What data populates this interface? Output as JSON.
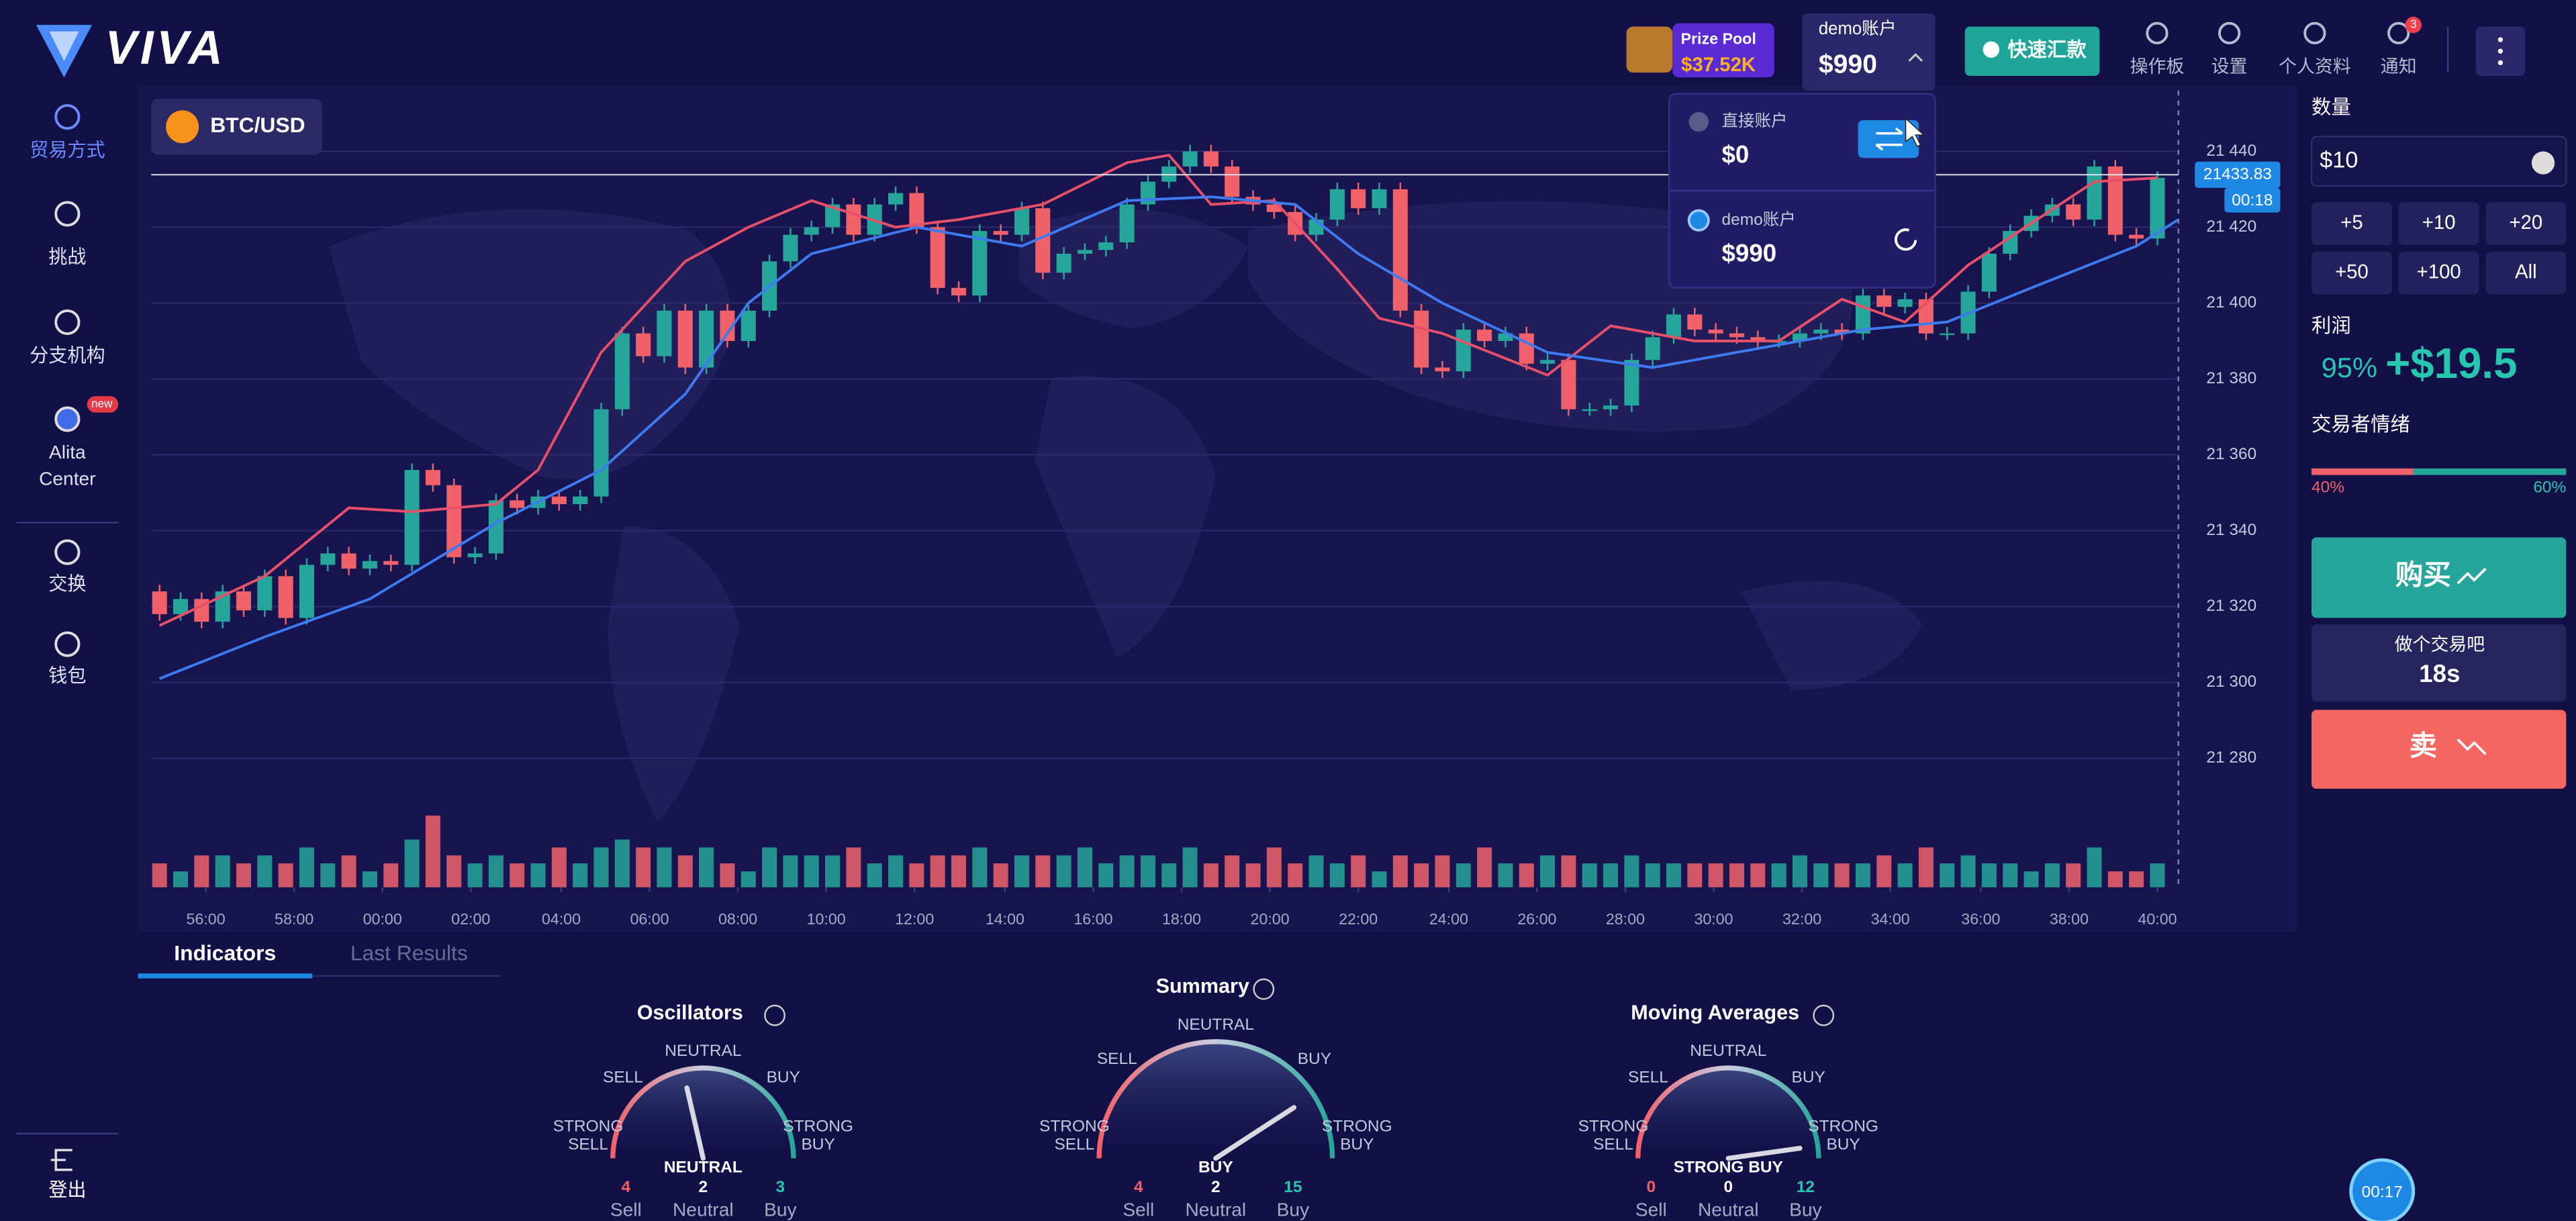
{
  "header": {
    "logo": "VIVA",
    "prize_pool_label": "Prize Pool",
    "prize_pool_value": "$37.52K",
    "account_label": "demo账户",
    "account_balance": "$990",
    "deposit_button": "快速汇款",
    "nav": [
      "操作板",
      "设置",
      "个人资料",
      "通知"
    ],
    "notification_count": "3"
  },
  "account_dropdown": {
    "accounts": [
      {
        "label": "直接账户",
        "balance": "$0"
      },
      {
        "label": "demo账户",
        "balance": "$990"
      }
    ]
  },
  "sidebar": {
    "items": [
      [
        "贸易方式"
      ],
      [
        "挑战"
      ],
      [
        "分支机构"
      ],
      [
        "Alita",
        "Center"
      ],
      [
        "交换"
      ],
      [
        "钱包"
      ]
    ],
    "badge": "new",
    "logout": "登出"
  },
  "asset": "BTC/USD",
  "chart_data": {
    "type": "candlestick",
    "up_color": "#26a69a",
    "down_color": "#f0616a",
    "grid": true,
    "xlim": [
      -0.4,
      96
    ],
    "ylim": [
      21246,
      21456
    ],
    "y2lim": [
      0,
      100
    ],
    "xticks": [
      {
        "value": 2.2,
        "label": "56:00"
      },
      {
        "value": 6.4,
        "label": "58:00"
      },
      {
        "value": 10.6,
        "label": "00:00"
      },
      {
        "value": 14.8,
        "label": "02:00"
      },
      {
        "value": 19.1,
        "label": "04:00"
      },
      {
        "value": 23.3,
        "label": "06:00"
      },
      {
        "value": 27.5,
        "label": "08:00"
      },
      {
        "value": 31.7,
        "label": "10:00"
      },
      {
        "value": 35.9,
        "label": "12:00"
      },
      {
        "value": 40.2,
        "label": "14:00"
      },
      {
        "value": 44.4,
        "label": "16:00"
      },
      {
        "value": 48.6,
        "label": "18:00"
      },
      {
        "value": 52.8,
        "label": "20:00"
      },
      {
        "value": 57,
        "label": "22:00"
      },
      {
        "value": 61.3,
        "label": "24:00"
      },
      {
        "value": 65.5,
        "label": "26:00"
      },
      {
        "value": 69.7,
        "label": "28:00"
      },
      {
        "value": 73.9,
        "label": "30:00"
      },
      {
        "value": 78.1,
        "label": "32:00"
      },
      {
        "value": 82.3,
        "label": "34:00"
      },
      {
        "value": 86.6,
        "label": "36:00"
      },
      {
        "value": 90.8,
        "label": "38:00"
      },
      {
        "value": 95,
        "label": "40:00"
      }
    ],
    "yticks": [
      {
        "value": 21280,
        "label": "21 280"
      },
      {
        "value": 21300,
        "label": "21 300"
      },
      {
        "value": 21320,
        "label": "21 320"
      },
      {
        "value": 21340,
        "label": "21 340"
      },
      {
        "value": 21360,
        "label": "21 360"
      },
      {
        "value": 21380,
        "label": "21 380"
      },
      {
        "value": 21400,
        "label": "21 400"
      },
      {
        "value": 21420,
        "label": "21 420"
      },
      {
        "value": 21440,
        "label": "21 440"
      }
    ],
    "current_price": 21433.83,
    "countdown": "00:18",
    "open": [
      21324,
      21318,
      21322,
      21316,
      21324,
      21319,
      21328,
      21317,
      21331,
      21334,
      21330,
      21332,
      21331,
      21356,
      21352,
      21333,
      21334,
      21348,
      21346,
      21349,
      21347,
      21349,
      21372,
      21392,
      21386,
      21398,
      21383,
      21398,
      21390,
      21398,
      21411,
      21418,
      21420,
      21426,
      21418,
      21426,
      21429,
      21420,
      21404,
      21402,
      21419,
      21418,
      21425,
      21408,
      21413,
      21414,
      21416,
      21426,
      21432,
      21436,
      21440,
      21436,
      21428,
      21426,
      21424,
      21418,
      21422,
      21430,
      21425,
      21430,
      21398,
      21383,
      21382,
      21393,
      21390,
      21392,
      21384,
      21385,
      21372,
      21372,
      21373,
      21385,
      21391,
      21397,
      21393,
      21392,
      21391,
      21390,
      21390,
      21392,
      21393,
      21392,
      21402,
      21399,
      21401,
      21392,
      21392,
      21403,
      21413,
      21419,
      21423,
      21426,
      21422,
      21436,
      21418,
      21417
    ],
    "close": [
      21318,
      21322,
      21316,
      21324,
      21319,
      21328,
      21317,
      21331,
      21334,
      21330,
      21332,
      21331,
      21356,
      21352,
      21333,
      21334,
      21348,
      21346,
      21349,
      21347,
      21349,
      21372,
      21392,
      21386,
      21398,
      21383,
      21398,
      21390,
      21398,
      21411,
      21418,
      21420,
      21426,
      21418,
      21426,
      21429,
      21420,
      21404,
      21402,
      21419,
      21418,
      21425,
      21408,
      21413,
      21414,
      21416,
      21426,
      21432,
      21436,
      21440,
      21436,
      21428,
      21426,
      21424,
      21418,
      21422,
      21430,
      21425,
      21430,
      21398,
      21383,
      21382,
      21393,
      21390,
      21392,
      21384,
      21385,
      21372,
      21372,
      21373,
      21385,
      21391,
      21397,
      21393,
      21392,
      21391,
      21390,
      21390,
      21392,
      21393,
      21392,
      21402,
      21399,
      21401,
      21392,
      21392,
      21403,
      21413,
      21419,
      21423,
      21426,
      21422,
      21436,
      21418,
      21417,
      21433
    ],
    "volume": [
      3,
      2,
      4,
      4,
      3,
      4,
      3,
      5,
      3,
      4,
      2,
      3,
      6,
      9,
      4,
      3,
      4,
      3,
      3,
      5,
      3,
      5,
      6,
      5,
      5,
      4,
      5,
      3,
      2,
      5,
      4,
      4,
      4,
      5,
      3,
      4,
      3,
      4,
      4,
      5,
      3,
      4,
      4,
      4,
      5,
      3,
      4,
      4,
      3,
      5,
      3,
      4,
      3,
      5,
      3,
      4,
      3,
      4,
      2,
      4,
      3,
      4,
      3,
      5,
      3,
      3,
      4,
      4,
      3,
      3,
      4,
      3,
      3,
      3,
      3,
      3,
      3,
      3,
      4,
      3,
      3,
      3,
      4,
      3,
      5,
      3,
      4,
      3,
      3,
      2,
      3,
      3,
      5,
      2,
      2,
      3
    ],
    "lines": [
      {
        "color": "#e8506a",
        "x": [
          0,
          5,
          9,
          12,
          16,
          18,
          21,
          25,
          28,
          31,
          35,
          38,
          42,
          46,
          48,
          50,
          53,
          56,
          58,
          61,
          66,
          69,
          73,
          77,
          80,
          83,
          86,
          89,
          92,
          95
        ],
        "values": [
          21315,
          21328,
          21346,
          21345,
          21347,
          21356,
          21387,
          21411,
          21420,
          21427,
          21420,
          21422,
          21426,
          21437,
          21439,
          21426,
          21427,
          21409,
          21396,
          21392,
          21381,
          21394,
          21390,
          21390,
          21401,
          21395,
          21410,
          21421,
          21432,
          21433
        ]
      },
      {
        "color": "#3d7bf0",
        "x": [
          0,
          5,
          10,
          16,
          21,
          25,
          28,
          31,
          36,
          41,
          46,
          50,
          54,
          57,
          61,
          66,
          71,
          75,
          81,
          85,
          89,
          94,
          96
        ],
        "values": [
          21301,
          21312,
          21322,
          21342,
          21356,
          21376,
          21400,
          21413,
          21420,
          21415,
          21427,
          21428,
          21426,
          21413,
          21400,
          21387,
          21383,
          21387,
          21393,
          21395,
          21404,
          21415,
          21422
        ]
      }
    ]
  },
  "indicators": {
    "tabs": [
      "Indicators",
      "Last Results"
    ],
    "gauges": [
      {
        "title": "Oscillators",
        "neutral": "NEUTRAL",
        "sell": "SELL",
        "buy": "BUY",
        "strong_sell": [
          "STRONG",
          "SELL"
        ],
        "strong_buy": [
          "STRONG",
          "BUY"
        ],
        "reading": "NEUTRAL",
        "counts": [
          "4",
          "2",
          "3"
        ],
        "count_labels": [
          "Sell",
          "Neutral",
          "Buy"
        ]
      },
      {
        "title": "Summary",
        "neutral": "NEUTRAL",
        "sell": "SELL",
        "buy": "BUY",
        "strong_sell": [
          "STRONG",
          "SELL"
        ],
        "strong_buy": [
          "STRONG",
          "BUY"
        ],
        "reading": "BUY",
        "counts": [
          "4",
          "2",
          "15"
        ],
        "count_labels": [
          "Sell",
          "Neutral",
          "Buy"
        ]
      },
      {
        "title": "Moving Averages",
        "neutral": "NEUTRAL",
        "sell": "SELL",
        "buy": "BUY",
        "strong_sell": [
          "STRONG",
          "SELL"
        ],
        "strong_buy": [
          "STRONG",
          "BUY"
        ],
        "reading": "STRONG BUY",
        "counts": [
          "0",
          "0",
          "12"
        ],
        "count_labels": [
          "Sell",
          "Neutral",
          "Buy"
        ]
      }
    ]
  },
  "trade_panel": {
    "amount_label": "数量",
    "amount": "$10",
    "amount_buttons": [
      "+5",
      "+10",
      "+20",
      "+50",
      "+100",
      "All"
    ],
    "profit_label": "利润",
    "profit_percent": "95%",
    "profit_value": "+$19.5",
    "sentiment_label": "交易者情绪",
    "sentiment": {
      "values": [
        40,
        60
      ],
      "value_labels": [
        "40%",
        "60%"
      ]
    },
    "buy": "购买",
    "trade_prompt": "做个交易吧",
    "trade_timer": "18s",
    "sell": "卖",
    "timer_bubble": "00:17"
  }
}
